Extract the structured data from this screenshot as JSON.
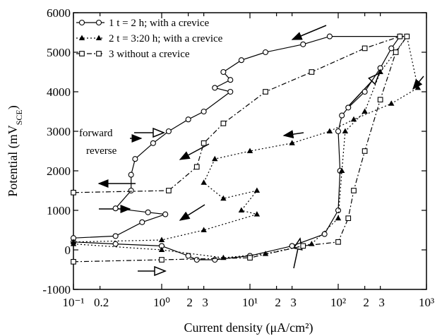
{
  "chart_data": {
    "type": "line",
    "xlabel": "Current density (μA/cm²)",
    "ylabel": {
      "text": "Potential (mV",
      "sub": "SCE",
      "end": ")"
    },
    "xscale": "log",
    "xlim": [
      0.1,
      1000
    ],
    "ylim": [
      -1000,
      6000
    ],
    "xticks": [
      {
        "value": 0.1,
        "label": "10⁻¹"
      },
      0.2,
      {
        "value": 1,
        "label": "10⁰"
      },
      2,
      3,
      {
        "value": 10,
        "label": "10¹"
      },
      {
        "value": 20,
        "label": "2"
      },
      {
        "value": 30,
        "label": "3"
      },
      {
        "value": 100,
        "label": "10²"
      },
      {
        "value": 200,
        "label": "2"
      },
      {
        "value": 300,
        "label": "3"
      },
      {
        "value": 1000,
        "label": "10³"
      }
    ],
    "yticks": [
      -1000,
      0,
      1000,
      2000,
      3000,
      4000,
      5000,
      6000
    ],
    "grid": false,
    "legend": "upper left",
    "annotations": [
      "forward",
      "reverse"
    ],
    "series": [
      {
        "name": "1 t = 2 h; with a crevice",
        "color": "#000000",
        "marker": "circle",
        "line": "solid",
        "x": [
          0.1,
          0.3,
          1,
          2,
          2.5,
          4,
          10,
          30,
          70,
          100,
          105,
          100,
          110,
          130,
          200,
          300,
          400,
          500,
          80,
          40,
          15,
          8,
          5,
          6,
          4,
          6,
          3,
          2,
          1.2,
          0.8,
          0.5,
          0.45,
          0.45,
          0.3,
          0.7,
          1.1,
          0.6,
          0.3,
          0.1
        ],
        "values": [
          200,
          150,
          100,
          -150,
          -250,
          -250,
          -150,
          100,
          400,
          1000,
          2000,
          3000,
          3400,
          3600,
          4000,
          4600,
          5100,
          5400,
          5400,
          5200,
          5000,
          4800,
          4500,
          4300,
          4100,
          4000,
          3500,
          3300,
          3000,
          2700,
          2300,
          1900,
          1500,
          1050,
          950,
          900,
          700,
          350,
          300
        ]
      },
      {
        "name": "2 t = 3:20 h; with a crevice",
        "color": "#000000",
        "marker": "triangle",
        "line": "dotted",
        "x": [
          0.1,
          1,
          5,
          15,
          50,
          100,
          110,
          120,
          200,
          300,
          600,
          800,
          400,
          150,
          80,
          30,
          10,
          4,
          3,
          5,
          12,
          8,
          12,
          3,
          1,
          0.1
        ],
        "values": [
          150,
          0,
          -200,
          -100,
          150,
          800,
          2000,
          3000,
          3500,
          4500,
          5400,
          4100,
          3700,
          3300,
          3000,
          2700,
          2500,
          2300,
          1700,
          1300,
          1500,
          1000,
          900,
          500,
          250,
          200
        ]
      },
      {
        "name": "3 without a crevice",
        "color": "#000000",
        "marker": "square",
        "line": "dashdot",
        "x": [
          0.1,
          1,
          10,
          40,
          100,
          130,
          150,
          200,
          300,
          450,
          600,
          500,
          200,
          50,
          15,
          5,
          3,
          2.5,
          1.2,
          0.1
        ],
        "values": [
          -300,
          -250,
          -200,
          100,
          200,
          800,
          1500,
          2500,
          3800,
          5000,
          5400,
          5400,
          5100,
          4500,
          4000,
          3200,
          2700,
          2100,
          1500,
          1450
        ]
      }
    ]
  }
}
